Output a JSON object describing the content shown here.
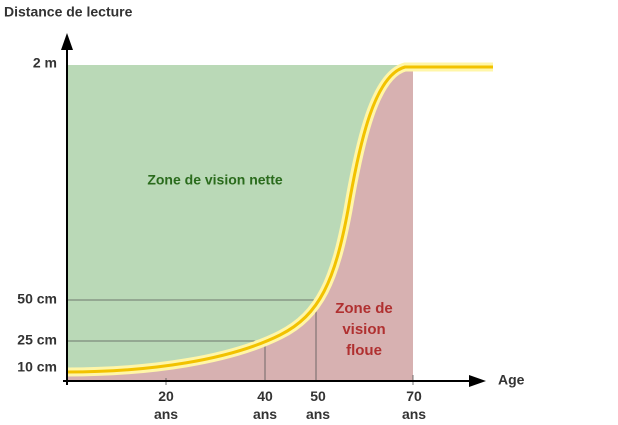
{
  "y_axis": {
    "title": "Distance de lecture",
    "ticks": [
      "2 m",
      "50 cm",
      "25 cm",
      "10 cm"
    ]
  },
  "x_axis": {
    "title": "Age",
    "ticks": [
      "20 ans",
      "40 ans",
      "50 ans",
      "70 ans"
    ]
  },
  "zones": {
    "clear": "Zone de vision nette",
    "blurry": "Zone de vision floue"
  }
}
